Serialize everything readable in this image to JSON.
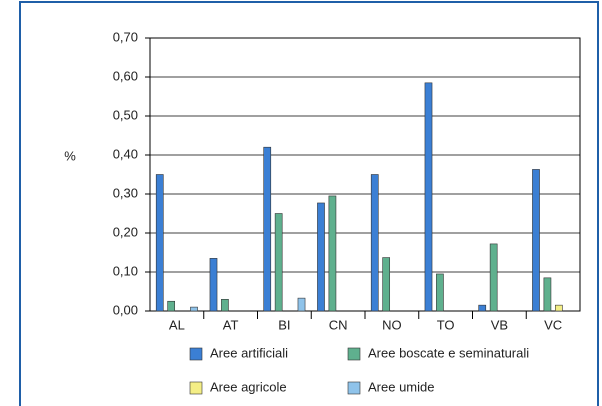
{
  "chart_data": {
    "type": "bar",
    "y_label": "%",
    "categories": [
      "AL",
      "AT",
      "BI",
      "CN",
      "NO",
      "TO",
      "VB",
      "VC"
    ],
    "series": [
      {
        "name": "Aree artificiali",
        "color": "#3b7fd4",
        "values": [
          0.35,
          0.135,
          0.42,
          0.277,
          0.35,
          0.585,
          0.015,
          0.363
        ]
      },
      {
        "name": "Aree boscate e seminaturali",
        "color": "#5fb08e",
        "values": [
          0.025,
          0.03,
          0.25,
          0.295,
          0.137,
          0.095,
          0.172,
          0.085
        ]
      },
      {
        "name": "Aree agricole",
        "color": "#f4ee86",
        "values": [
          0,
          0,
          0,
          0,
          0,
          0,
          0,
          0.015
        ]
      },
      {
        "name": "Aree umide",
        "color": "#8fc3ea",
        "values": [
          0.01,
          0,
          0.033,
          0,
          0,
          0,
          0,
          0
        ]
      }
    ],
    "ylim": [
      0,
      0.7
    ],
    "yticks": [
      {
        "value": 0,
        "label": "0,00"
      },
      {
        "value": 0.1,
        "label": "0,10"
      },
      {
        "value": 0.2,
        "label": "0,20"
      },
      {
        "value": 0.3,
        "label": "0,30"
      },
      {
        "value": 0.4,
        "label": "0,40"
      },
      {
        "value": 0.5,
        "label": "0,50"
      },
      {
        "value": 0.6,
        "label": "0,60"
      },
      {
        "value": 0.7,
        "label": "0,70"
      }
    ],
    "grid": true
  }
}
